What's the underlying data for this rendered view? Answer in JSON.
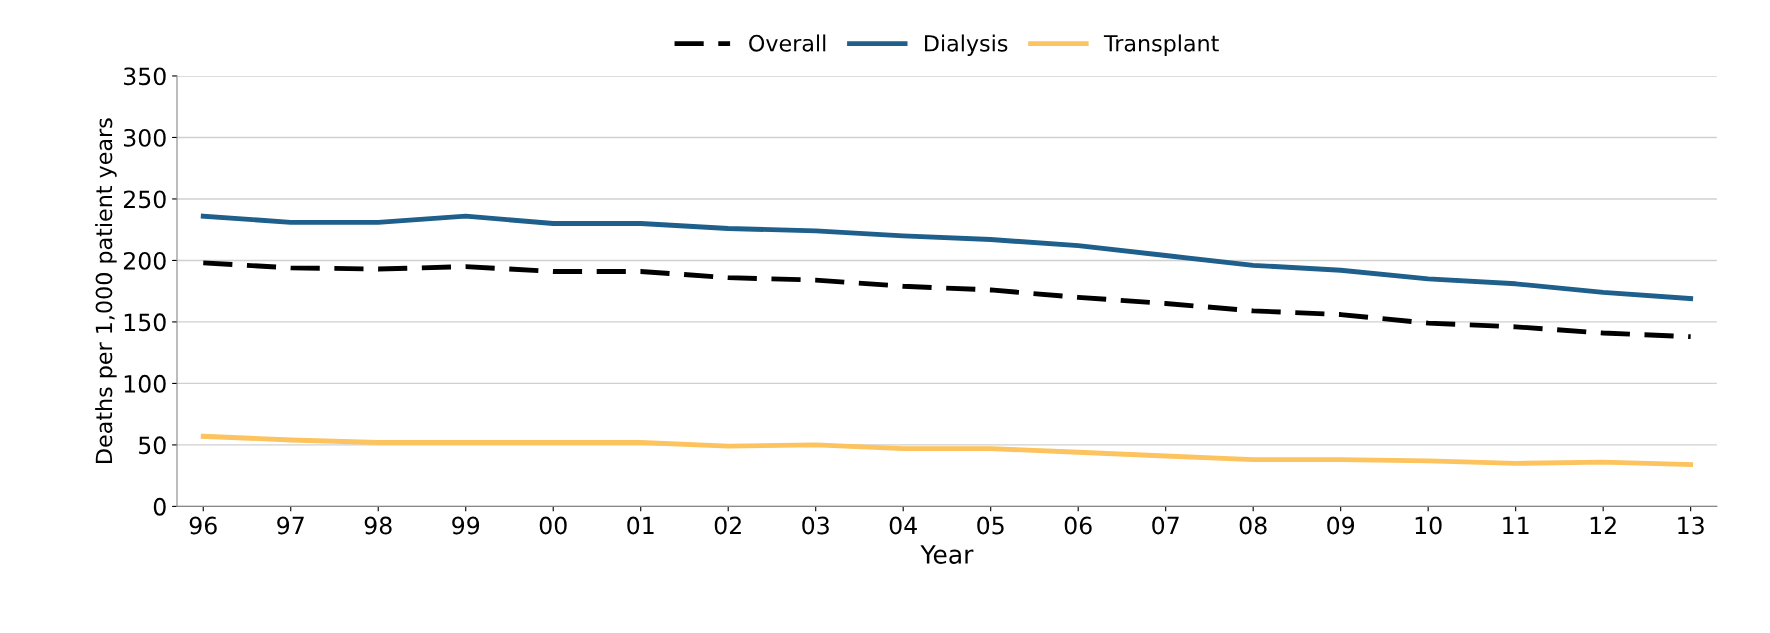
{
  "chart_data": {
    "type": "line",
    "xlabel": "Year",
    "ylabel": "Deaths per 1,000 patient years",
    "categories": [
      "96",
      "97",
      "98",
      "99",
      "00",
      "01",
      "02",
      "03",
      "04",
      "05",
      "06",
      "07",
      "08",
      "09",
      "10",
      "11",
      "12",
      "13"
    ],
    "ylim": [
      0,
      350
    ],
    "yticks": [
      0,
      50,
      100,
      150,
      200,
      250,
      300,
      350
    ],
    "grid": "y",
    "legend": "top",
    "series": [
      {
        "name": "Overall",
        "color": "#000000",
        "line_style": "dashed",
        "values": [
          198,
          194,
          193,
          195,
          191,
          191,
          186,
          184,
          179,
          176,
          170,
          165,
          159,
          156,
          149,
          146,
          141,
          138
        ]
      },
      {
        "name": "Dialysis",
        "color": "#1f5f8b",
        "line_style": "solid",
        "values": [
          236,
          231,
          231,
          236,
          230,
          230,
          226,
          224,
          220,
          217,
          212,
          204,
          196,
          192,
          185,
          181,
          174,
          169
        ]
      },
      {
        "name": "Transplant",
        "color": "#fcc35f",
        "line_style": "solid",
        "values": [
          57,
          54,
          52,
          52,
          52,
          52,
          49,
          50,
          47,
          47,
          44,
          41,
          38,
          38,
          37,
          35,
          36,
          34
        ]
      }
    ]
  }
}
